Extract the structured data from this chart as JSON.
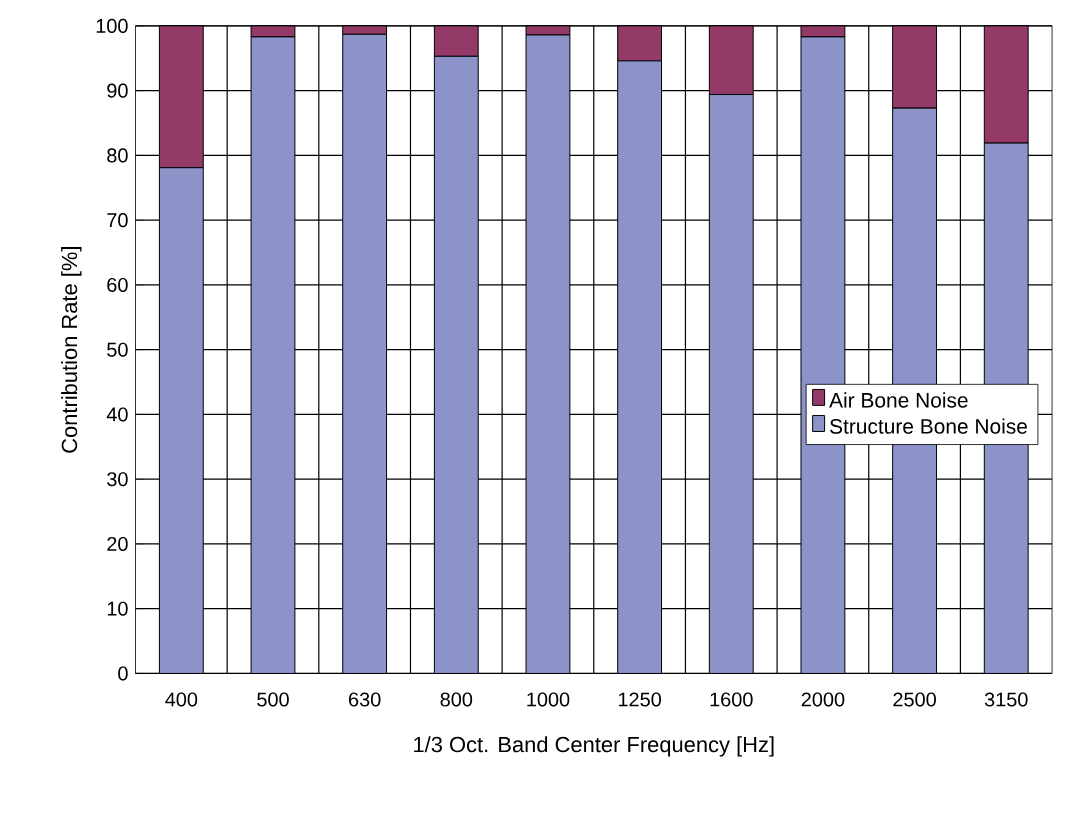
{
  "chart_data": {
    "type": "bar",
    "stacked": true,
    "xlabel": "1/3 Oct. Band  Center  Frequency  [Hz]",
    "ylabel": "Contribution Rate  [%]",
    "categories": [
      "400",
      "500",
      "630",
      "800",
      "1000",
      "1250",
      "1600",
      "2000",
      "2500",
      "3150"
    ],
    "series": [
      {
        "name": "Structure Bone Noise",
        "color": "#8b93c8",
        "values": [
          78.1,
          98.3,
          98.7,
          95.3,
          98.6,
          94.6,
          89.4,
          98.3,
          87.3,
          81.9
        ]
      },
      {
        "name": "Air Bone Noise",
        "color": "#943a68",
        "values": [
          21.9,
          1.7,
          1.3,
          4.7,
          1.4,
          5.4,
          10.6,
          1.7,
          12.7,
          18.1
        ]
      }
    ],
    "ylim": [
      0,
      100
    ],
    "yticks": [
      0,
      10,
      20,
      30,
      40,
      50,
      60,
      70,
      80,
      90,
      100
    ],
    "grid": true,
    "legend": "right"
  }
}
